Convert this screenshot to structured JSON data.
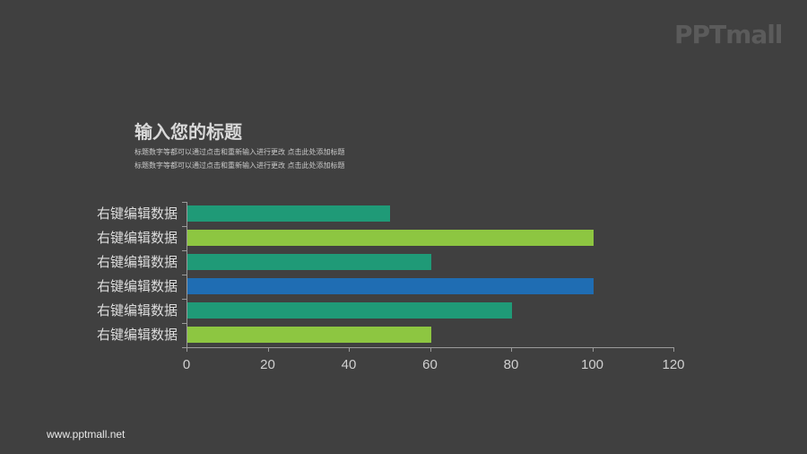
{
  "brand": {
    "logo_text": "PPTmall",
    "footer_url": "www.pptmall.net"
  },
  "header": {
    "title": "输入您的标题",
    "subtitle_lines": [
      "标题数字等都可以通过点击和重新输入进行更改 点击此处添加标题",
      "标题数字等都可以通过点击和重新输入进行更改 点击此处添加标题"
    ]
  },
  "colors": {
    "background": "#404040",
    "teal": "#1f9a77",
    "lime": "#8dc641",
    "blue": "#1f6db3"
  },
  "chart_data": {
    "type": "bar",
    "orientation": "horizontal",
    "title": "输入您的标题",
    "categories": [
      "右键编辑数据",
      "右键编辑数据",
      "右键编辑数据",
      "右键编辑数据",
      "右键编辑数据",
      "右键编辑数据"
    ],
    "values": [
      50,
      100,
      60,
      100,
      80,
      60
    ],
    "bar_colors": [
      "#1f9a77",
      "#8dc641",
      "#1f9a77",
      "#1f6db3",
      "#1f9a77",
      "#8dc641"
    ],
    "xlim": [
      0,
      120
    ],
    "xticks": [
      0,
      20,
      40,
      60,
      80,
      100,
      120
    ],
    "xlabel": "",
    "ylabel": "",
    "grid": false,
    "legend": null
  }
}
